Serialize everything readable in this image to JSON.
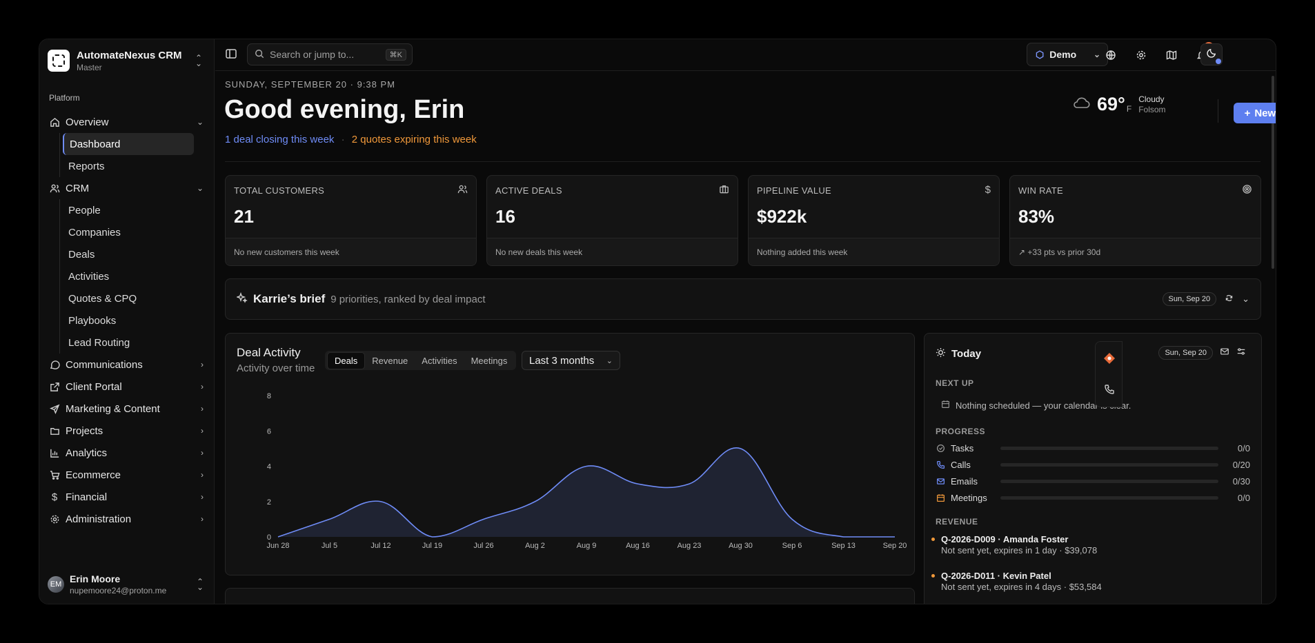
{
  "app": {
    "name": "AutomateNexus CRM",
    "workspace": "Master"
  },
  "sidebar": {
    "section_label": "Platform",
    "overview": {
      "label": "Overview"
    },
    "overview_items": [
      {
        "label": "Dashboard",
        "active": true
      },
      {
        "label": "Reports"
      }
    ],
    "crm": {
      "label": "CRM"
    },
    "crm_items": [
      {
        "label": "People"
      },
      {
        "label": "Companies"
      },
      {
        "label": "Deals"
      },
      {
        "label": "Activities"
      },
      {
        "label": "Quotes & CPQ"
      },
      {
        "label": "Playbooks"
      },
      {
        "label": "Lead Routing"
      }
    ],
    "groups": [
      {
        "label": "Communications",
        "icon": "chat-icon"
      },
      {
        "label": "Client Portal",
        "icon": "external-link-icon"
      },
      {
        "label": "Marketing & Content",
        "icon": "send-icon"
      },
      {
        "label": "Projects",
        "icon": "folder-icon"
      },
      {
        "label": "Analytics",
        "icon": "bar-chart-icon"
      },
      {
        "label": "Ecommerce",
        "icon": "cart-icon"
      },
      {
        "label": "Financial",
        "icon": "dollar-icon"
      },
      {
        "label": "Administration",
        "icon": "gear-icon"
      }
    ],
    "user": {
      "name": "Erin Moore",
      "email": "nupemoore24@proton.me"
    }
  },
  "topbar": {
    "search_placeholder": "Search or jump to...",
    "search_shortcut": "⌘K",
    "workspace_button": "Demo",
    "notification_count": "4"
  },
  "header": {
    "date": "SUNDAY, SEPTEMBER 20",
    "time": "9:38 PM",
    "greeting": "Good evening, Erin",
    "deals_note": "1 deal closing this week",
    "quotes_note": "2 quotes expiring this week",
    "new_button": "New"
  },
  "weather": {
    "temp": "69°",
    "unit": "F",
    "condition": "Cloudy",
    "location": "Folsom"
  },
  "stats": [
    {
      "label": "TOTAL CUSTOMERS",
      "value": "21",
      "foot": "No new customers this week",
      "icon": "users-icon"
    },
    {
      "label": "ACTIVE DEALS",
      "value": "16",
      "foot": "No new deals this week",
      "icon": "briefcase-icon"
    },
    {
      "label": "PIPELINE VALUE",
      "value": "$922k",
      "foot": "Nothing added this week",
      "icon": "dollar-icon"
    },
    {
      "label": "WIN RATE",
      "value": "83%",
      "foot": "↗ +33 pts vs prior 30d",
      "icon": "target-icon"
    }
  ],
  "brief": {
    "title": "Karrie’s brief",
    "description": "9 priorities, ranked by deal impact",
    "date": "Sun, Sep 20"
  },
  "deal_activity": {
    "title": "Deal Activity",
    "subtitle": "Activity over time",
    "tabs": [
      "Deals",
      "Revenue",
      "Activities",
      "Meetings"
    ],
    "active_tab": "Deals",
    "range": "Last 3 months"
  },
  "chart_data": {
    "type": "area",
    "x": [
      "Jun 28",
      "Jul 5",
      "Jul 12",
      "Jul 19",
      "Jul 26",
      "Aug 2",
      "Aug 9",
      "Aug 16",
      "Aug 23",
      "Aug 30",
      "Sep 6",
      "Sep 13",
      "Sep 20"
    ],
    "series": [
      {
        "values": [
          0,
          1,
          2,
          0,
          1,
          2,
          4,
          3,
          3,
          5,
          1,
          0,
          0
        ],
        "color": "#6f8cf7"
      }
    ],
    "ylim": [
      0,
      8
    ],
    "yticks": [
      0,
      2,
      4,
      6,
      8
    ],
    "grid": false
  },
  "today": {
    "title": "Today",
    "date": "Sun, Sep 20",
    "next_up_label": "NEXT UP",
    "next_up_empty": "Nothing scheduled — your calendar is clear.",
    "progress_label": "PROGRESS",
    "progress": [
      {
        "label": "Tasks",
        "value": "0/0",
        "fraction": 0,
        "icon": "check-circle-icon",
        "color": "#9a9a9a"
      },
      {
        "label": "Calls",
        "value": "0/20",
        "fraction": 0,
        "icon": "phone-icon",
        "color": "#6f8cf7"
      },
      {
        "label": "Emails",
        "value": "0/30",
        "fraction": 0,
        "icon": "mail-icon",
        "color": "#6f8cf7"
      },
      {
        "label": "Meetings",
        "value": "0/0",
        "fraction": 0,
        "icon": "calendar-icon",
        "color": "#f0983a"
      }
    ],
    "revenue_label": "REVENUE",
    "revenue": [
      {
        "title": "Q-2026-D009 · Amanda Foster",
        "detail": "Not sent yet, expires in 1 day · $39,078"
      },
      {
        "title": "Q-2026-D011 · Kevin Patel",
        "detail": "Not sent yet, expires in 4 days · $53,584"
      }
    ]
  },
  "colors": {
    "accent": "#6f8cf7",
    "warning": "#f0983a",
    "background": "#0a0a0a"
  }
}
